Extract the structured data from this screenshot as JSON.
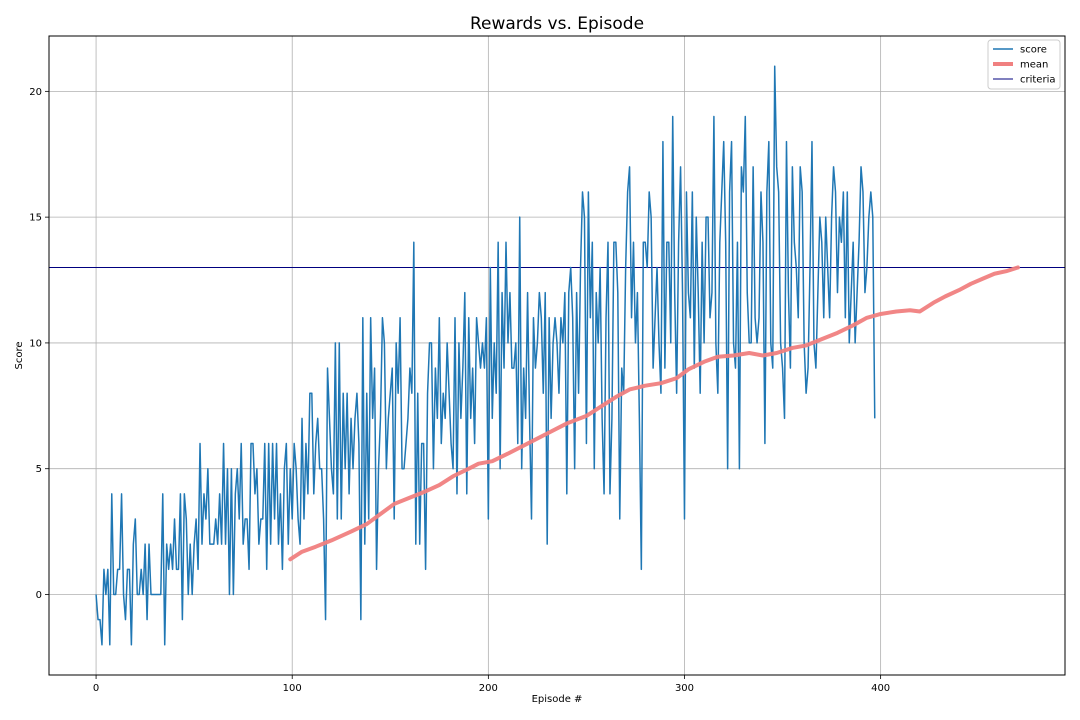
{
  "chart_data": {
    "type": "line",
    "title": "Rewards vs. Episode",
    "xlabel": "Episode #",
    "ylabel": "Score",
    "xlim": [
      -24,
      494
    ],
    "ylim": [
      -3.2,
      22.2
    ],
    "xticks": [
      0,
      100,
      200,
      300,
      400
    ],
    "yticks": [
      0,
      5,
      10,
      15,
      20
    ],
    "grid": true,
    "legend_position": "top-right",
    "series": [
      {
        "name": "score",
        "color": "#1f77b4",
        "line_width": 1.5,
        "x_start": 0,
        "values": [
          0,
          -1,
          -1,
          -2,
          1,
          0,
          1,
          -2,
          4,
          0,
          0,
          1,
          1,
          4,
          0,
          -1,
          1,
          1,
          -2,
          2,
          3,
          0,
          0,
          1,
          0,
          2,
          -1,
          2,
          0,
          0,
          0,
          0,
          0,
          0,
          4,
          -2,
          2,
          1,
          2,
          1,
          3,
          1,
          1,
          4,
          -1,
          4,
          3,
          0,
          2,
          0,
          2,
          3,
          1,
          6,
          2,
          4,
          3,
          5,
          2,
          2,
          2,
          3,
          2,
          4,
          2,
          6,
          2,
          5,
          0,
          5,
          0,
          4,
          5,
          3,
          6,
          2,
          3,
          3,
          1,
          6,
          6,
          4,
          5,
          2,
          3,
          3,
          6,
          1,
          6,
          2,
          6,
          3,
          6,
          2,
          4,
          1,
          5,
          6,
          2,
          5,
          3,
          6,
          5,
          3,
          2,
          7,
          3,
          6,
          4,
          8,
          8,
          4,
          6,
          7,
          5,
          5,
          3,
          -1,
          9,
          7,
          5,
          4,
          10,
          3,
          10,
          3,
          8,
          5,
          8,
          4,
          7,
          5,
          7,
          8,
          6,
          -1,
          11,
          2,
          8,
          3,
          11,
          7,
          9,
          1,
          5,
          7,
          11,
          10,
          5,
          7,
          8,
          9,
          3,
          10,
          8,
          11,
          5,
          5,
          6,
          7,
          9,
          8,
          14,
          2,
          8,
          2,
          6,
          6,
          1,
          8,
          10,
          10,
          5,
          9,
          7,
          11,
          6,
          8,
          7,
          10,
          8,
          6,
          5,
          11,
          4,
          10,
          7,
          9,
          12,
          4,
          11,
          7,
          9,
          6,
          11,
          10,
          9,
          10,
          9,
          11,
          3,
          13,
          7,
          10,
          8,
          14,
          5,
          12,
          9,
          14,
          10,
          12,
          9,
          9,
          10,
          6,
          15,
          5,
          9,
          7,
          12,
          7,
          3,
          11,
          9,
          10,
          12,
          11,
          8,
          12,
          2,
          11,
          7,
          10,
          11,
          10,
          8,
          11,
          10,
          12,
          4,
          12,
          13,
          11,
          5,
          12,
          8,
          13,
          16,
          15,
          6,
          16,
          11,
          14,
          5,
          12,
          10,
          13,
          7,
          4,
          11,
          14,
          4,
          7,
          14,
          14,
          12,
          3,
          9,
          8,
          13,
          16,
          17,
          11,
          14,
          10,
          12,
          7,
          1,
          14,
          14,
          13,
          16,
          15,
          9,
          11,
          13,
          10,
          8,
          18,
          9,
          14,
          14,
          10,
          19,
          12,
          8,
          14,
          17,
          12,
          3,
          16,
          12,
          11,
          16,
          9,
          15,
          12,
          8,
          14,
          10,
          15,
          15,
          11,
          12,
          19,
          10,
          8,
          14,
          16,
          18,
          14,
          5,
          16,
          18,
          10,
          9,
          14,
          5,
          17,
          16,
          19,
          12,
          10,
          10,
          17,
          11,
          10,
          11,
          16,
          14,
          6,
          16,
          18,
          10,
          9,
          21,
          17,
          16,
          10,
          9,
          7,
          18,
          12,
          9,
          17,
          14,
          13,
          11,
          17,
          16,
          10,
          8,
          9,
          13,
          18,
          10,
          9,
          12,
          15,
          14,
          11,
          15,
          13,
          11,
          15,
          17,
          16,
          12,
          15,
          14,
          16,
          11,
          16,
          10,
          12,
          14,
          10,
          12,
          14,
          17,
          16,
          12,
          13,
          15,
          16,
          15,
          7
        ],
        "note_resample": false
      },
      {
        "name": "mean",
        "color": "#f08080",
        "line_width": 4,
        "points": [
          [
            99,
            1.4
          ],
          [
            105,
            1.7
          ],
          [
            112,
            1.9
          ],
          [
            120,
            2.15
          ],
          [
            130,
            2.5
          ],
          [
            138,
            2.8
          ],
          [
            145,
            3.2
          ],
          [
            152,
            3.6
          ],
          [
            160,
            3.85
          ],
          [
            168,
            4.1
          ],
          [
            175,
            4.35
          ],
          [
            182,
            4.7
          ],
          [
            190,
            5.0
          ],
          [
            195,
            5.2
          ],
          [
            202,
            5.3
          ],
          [
            210,
            5.6
          ],
          [
            220,
            6.0
          ],
          [
            230,
            6.4
          ],
          [
            240,
            6.8
          ],
          [
            250,
            7.1
          ],
          [
            258,
            7.5
          ],
          [
            265,
            7.85
          ],
          [
            272,
            8.15
          ],
          [
            280,
            8.3
          ],
          [
            288,
            8.4
          ],
          [
            296,
            8.6
          ],
          [
            302,
            8.95
          ],
          [
            310,
            9.25
          ],
          [
            317,
            9.45
          ],
          [
            325,
            9.5
          ],
          [
            333,
            9.6
          ],
          [
            340,
            9.5
          ],
          [
            347,
            9.6
          ],
          [
            355,
            9.8
          ],
          [
            362,
            9.9
          ],
          [
            370,
            10.15
          ],
          [
            378,
            10.4
          ],
          [
            386,
            10.7
          ],
          [
            393,
            11.0
          ],
          [
            400,
            11.15
          ],
          [
            408,
            11.25
          ],
          [
            415,
            11.3
          ],
          [
            420,
            11.25
          ],
          [
            427,
            11.6
          ],
          [
            433,
            11.85
          ],
          [
            440,
            12.1
          ],
          [
            446,
            12.35
          ],
          [
            452,
            12.55
          ],
          [
            458,
            12.75
          ],
          [
            464,
            12.85
          ],
          [
            470,
            13.0
          ]
        ]
      },
      {
        "name": "criteria",
        "color": "#00007f",
        "line_width": 1,
        "value": 13
      }
    ]
  }
}
